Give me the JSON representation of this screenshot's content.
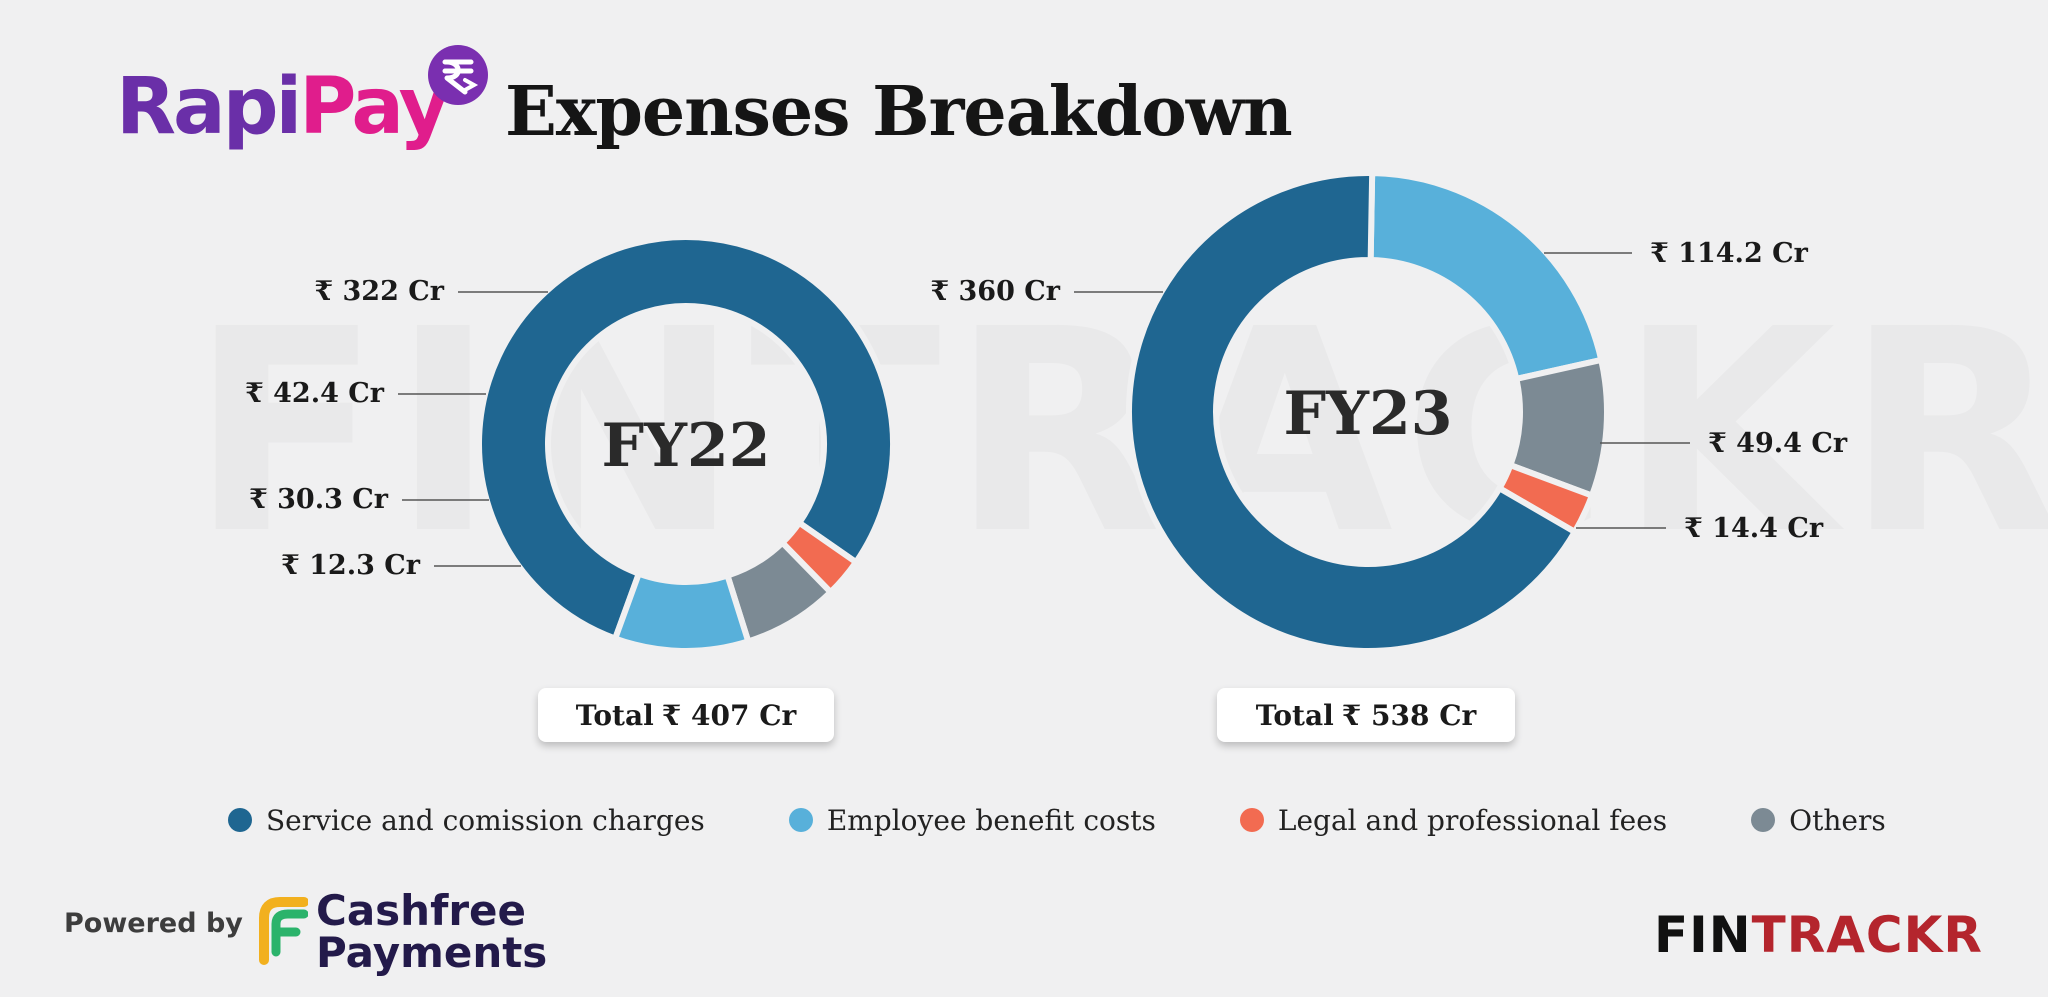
{
  "header": {
    "brand_part1": "Rapi",
    "brand_part2": "Pay",
    "brand_icon": "rupee-forward-icon",
    "title": "Expenses Breakdown"
  },
  "watermark": "FINTRACKR",
  "colors": {
    "service": "#1f6691",
    "employee": "#58b0da",
    "legal": "#f26b51",
    "others": "#7c8a94",
    "rapi": "#6a2fa8",
    "pay": "#e01d8c"
  },
  "chart_data": [
    {
      "type": "donut",
      "title": "FY22",
      "unit": "₹ Cr",
      "categories": [
        "Service and comission charges",
        "Employee benefit costs",
        "Others",
        "Legal and professional fees"
      ],
      "values": [
        322,
        42.4,
        30.3,
        12.3
      ],
      "value_labels": [
        "₹ 322 Cr",
        "₹ 42.4 Cr",
        "₹ 30.3 Cr",
        "₹ 12.3 Cr"
      ],
      "total_prefix": "Total",
      "total_value": "₹ 407 Cr"
    },
    {
      "type": "donut",
      "title": "FY23",
      "unit": "₹ Cr",
      "categories": [
        "Service and comission charges",
        "Employee benefit costs",
        "Others",
        "Legal and professional fees"
      ],
      "values": [
        360,
        114.2,
        49.4,
        14.4
      ],
      "value_labels": [
        "₹ 360 Cr",
        "₹ 114.2 Cr",
        "₹ 49.4 Cr",
        "₹ 14.4 Cr"
      ],
      "total_prefix": "Total",
      "total_value": "₹ 538 Cr"
    }
  ],
  "legend": [
    {
      "label": "Service and comission charges",
      "color": "#1f6691"
    },
    {
      "label": "Employee benefit costs",
      "color": "#58b0da"
    },
    {
      "label": "Legal and professional fees",
      "color": "#f26b51"
    },
    {
      "label": "Others",
      "color": "#7c8a94"
    }
  ],
  "footer": {
    "powered_by": "Powered by",
    "cashfree_line1": "Cashfree",
    "cashfree_line2": "Payments",
    "cashfree_icon": "cashfree-logo-icon",
    "fintrackr_part1": "FIN",
    "fintrackr_part2": "TRACKR"
  }
}
